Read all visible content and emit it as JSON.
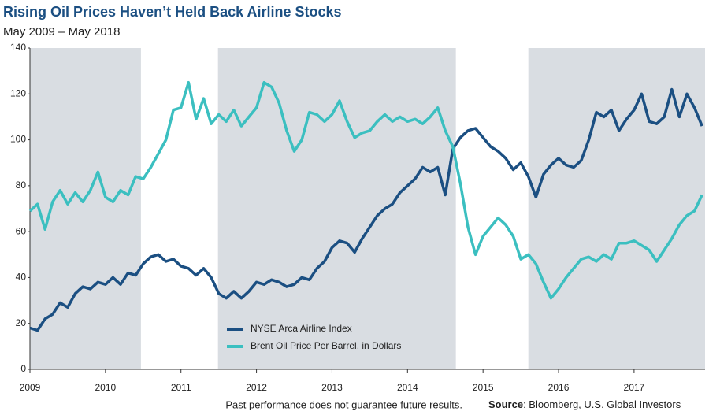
{
  "chart_data": {
    "type": "line",
    "title": "Rising Oil Prices Haven’t Held Back Airline Stocks",
    "subtitle": "May 2009 – May 2018",
    "footnote": "Past performance does not guarantee future results.",
    "source_label": "Source",
    "source": ": Bloomberg, U.S. Global Investors",
    "x": [
      2009.0,
      2009.1,
      2009.2,
      2009.3,
      2009.4,
      2009.5,
      2009.6,
      2009.7,
      2009.8,
      2009.9,
      2010.0,
      2010.1,
      2010.2,
      2010.3,
      2010.4,
      2010.5,
      2010.6,
      2010.7,
      2010.8,
      2010.9,
      2011.0,
      2011.1,
      2011.2,
      2011.3,
      2011.4,
      2011.5,
      2011.6,
      2011.7,
      2011.8,
      2011.9,
      2012.0,
      2012.1,
      2012.2,
      2012.3,
      2012.4,
      2012.5,
      2012.6,
      2012.7,
      2012.8,
      2012.9,
      2013.0,
      2013.1,
      2013.2,
      2013.3,
      2013.4,
      2013.5,
      2013.6,
      2013.7,
      2013.8,
      2013.9,
      2014.0,
      2014.1,
      2014.2,
      2014.3,
      2014.4,
      2014.5,
      2014.6,
      2014.7,
      2014.8,
      2014.9,
      2015.0,
      2015.1,
      2015.2,
      2015.3,
      2015.4,
      2015.5,
      2015.6,
      2015.7,
      2015.8,
      2015.9,
      2016.0,
      2016.1,
      2016.2,
      2016.3,
      2016.4,
      2016.5,
      2016.6,
      2016.7,
      2016.8,
      2016.9,
      2017.0,
      2017.1,
      2017.2,
      2017.3,
      2017.4,
      2017.5,
      2017.6,
      2017.7,
      2017.8,
      2017.9
    ],
    "series": [
      {
        "name": "NYSE Arca Airline Index",
        "color": "#1b4f82",
        "values": [
          18,
          17,
          22,
          24,
          29,
          27,
          33,
          36,
          35,
          38,
          37,
          40,
          37,
          42,
          41,
          46,
          49,
          50,
          47,
          48,
          45,
          44,
          41,
          44,
          40,
          33,
          31,
          34,
          31,
          34,
          38,
          37,
          39,
          38,
          36,
          37,
          40,
          39,
          44,
          47,
          53,
          56,
          55,
          51,
          57,
          62,
          67,
          70,
          72,
          77,
          80,
          83,
          88,
          86,
          88,
          76,
          96,
          101,
          104,
          105,
          101,
          97,
          95,
          92,
          87,
          90,
          84,
          75,
          85,
          89,
          92,
          89,
          88,
          91,
          100,
          112,
          110,
          113,
          104,
          109,
          113,
          120,
          108,
          107,
          110,
          122,
          110,
          120,
          114,
          106
        ]
      },
      {
        "name": "Brent Oil Price Per Barrel, in Dollars",
        "color": "#3bbfc0",
        "values": [
          69,
          72,
          61,
          73,
          78,
          72,
          77,
          73,
          78,
          86,
          75,
          73,
          78,
          76,
          84,
          83,
          88,
          94,
          100,
          113,
          114,
          125,
          109,
          118,
          107,
          111,
          108,
          113,
          106,
          110,
          114,
          125,
          123,
          116,
          104,
          95,
          100,
          112,
          111,
          108,
          111,
          117,
          108,
          101,
          103,
          104,
          108,
          111,
          108,
          110,
          108,
          109,
          107,
          110,
          114,
          104,
          97,
          81,
          62,
          50,
          58,
          62,
          66,
          63,
          58,
          48,
          50,
          46,
          38,
          31,
          35,
          40,
          44,
          48,
          49,
          47,
          50,
          48,
          55,
          55,
          56,
          54,
          52,
          47,
          52,
          57,
          63,
          67,
          69,
          76
        ]
      }
    ],
    "shaded_periods": [
      [
        2009,
        2010.47
      ],
      [
        2011.49,
        2014.64
      ],
      [
        2015.6,
        2017.94
      ]
    ],
    "shade_color": "#d9dde2",
    "xlim": [
      2009,
      2017.94
    ],
    "xticks": [
      2009,
      2010,
      2011,
      2012,
      2013,
      2014,
      2015,
      2016,
      2017
    ],
    "ylim": [
      0,
      140
    ],
    "yticks": [
      0,
      20,
      40,
      60,
      80,
      100,
      120,
      140
    ],
    "grid": false
  }
}
